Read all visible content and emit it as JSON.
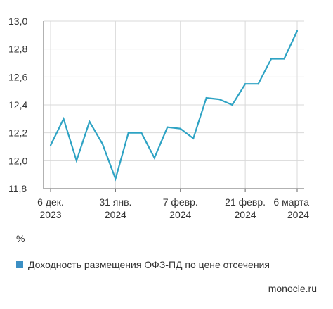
{
  "chart_data": {
    "type": "line",
    "title": "",
    "xlabel": "",
    "ylabel": "",
    "unit_label": "%",
    "ylim": [
      11.8,
      13.0
    ],
    "yticks": [
      "11,8",
      "12,0",
      "12,2",
      "12,4",
      "12,6",
      "12,8",
      "13,0"
    ],
    "ytick_values": [
      11.8,
      12.0,
      12.2,
      12.4,
      12.6,
      12.8,
      13.0
    ],
    "xticks": [
      {
        "index": 0,
        "line1": "6 дек.",
        "line2": "2023"
      },
      {
        "index": 5,
        "line1": "31 янв.",
        "line2": "2024"
      },
      {
        "index": 10,
        "line1": "7 февр.",
        "line2": "2024"
      },
      {
        "index": 15,
        "line1": "21 февр.",
        "line2": "2024"
      },
      {
        "index": 19,
        "line1": "6 марта",
        "line2": "2024"
      }
    ],
    "grid": true,
    "legend_position": "bottom-left",
    "series": [
      {
        "name": "Доходность размещения ОФЗ-ПД по цене отсечения",
        "color": "#2ea3c4",
        "values": [
          12.11,
          12.3,
          12.0,
          12.28,
          12.12,
          11.87,
          12.2,
          12.2,
          12.02,
          12.24,
          12.23,
          12.16,
          12.45,
          12.44,
          12.4,
          12.55,
          12.55,
          12.73,
          12.73,
          12.93
        ]
      }
    ]
  },
  "legend": {
    "label": "Доходность размещения ОФЗ-ПД по цене отсечения",
    "color": "#3b8fc4"
  },
  "source": "monocle.ru"
}
